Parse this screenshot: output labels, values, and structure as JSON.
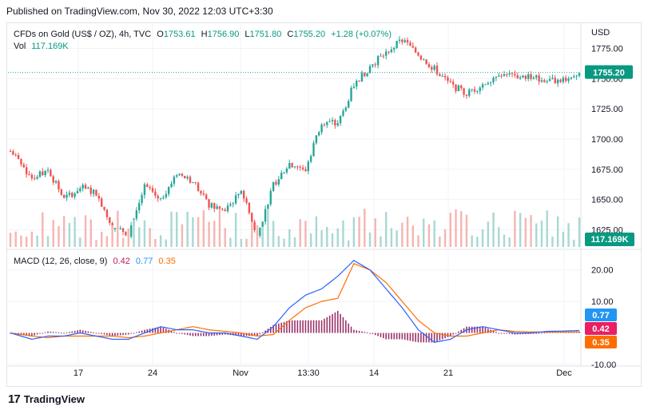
{
  "header": {
    "published": "Published on TradingView.com, Nov 30, 2022 12:03 UTC+3:30"
  },
  "footer": {
    "brand": "TradingView",
    "logo": "17"
  },
  "colors": {
    "up": "#26a69a",
    "down": "#ef5350",
    "vol_up": "#a8d8d2",
    "vol_down": "#f5b5b2",
    "macd_line": "#2962ff",
    "signal_line": "#ff6d00",
    "hist_pos": "#880e4f",
    "price_line": "#26a69a",
    "grid": "#f0f3fa",
    "axis_text": "#131722"
  },
  "legend": {
    "symbol": "CFDs on Gold (US$ / OZ), 4h, TVC",
    "o_label": "O",
    "o_value": "1753.61",
    "h_label": "H",
    "h_value": "1756.90",
    "l_label": "L",
    "l_value": "1751.80",
    "c_label": "C",
    "c_value": "1755.20",
    "change": "+1.28 (+0.07%)",
    "vol_label": "Vol",
    "vol_value": "117.169K"
  },
  "macd_legend": {
    "label": "MACD (12, 26, close, 9)",
    "hist": "0.42",
    "macd": "0.77",
    "signal": "0.35"
  },
  "price_axis": {
    "currency": "USD",
    "ticks": [
      "1775.00",
      "1750.00",
      "1725.00",
      "1700.00",
      "1675.00",
      "1650.00",
      "1625.00"
    ]
  },
  "price_badge": "1755.20",
  "volume_badge": "117.169K",
  "macd_axis": {
    "ticks": [
      "20.00",
      "10.00",
      "-10.00"
    ]
  },
  "macd_badges": {
    "macd": "0.77",
    "hist": "0.42",
    "signal": "0.35"
  },
  "time_axis": {
    "ticks": [
      "17",
      "24",
      "Nov",
      "13:30",
      "14",
      "21",
      "Dec"
    ]
  },
  "chart_data": {
    "type": "candlestick",
    "symbol": "CFDs on Gold (US$ / OZ)",
    "interval": "4h",
    "last": {
      "open": 1753.61,
      "high": 1756.9,
      "low": 1751.8,
      "close": 1755.2,
      "change": 1.28,
      "change_pct": 0.07
    },
    "price_axis_range": [
      1610,
      1790
    ],
    "close_path": {
      "x_index": [
        0,
        8,
        14,
        20,
        26,
        32,
        38,
        44,
        50,
        56,
        62,
        68,
        74,
        80,
        86,
        92,
        98,
        104,
        110,
        116,
        122,
        128,
        134,
        140,
        146,
        152,
        158,
        164,
        170,
        176,
        182,
        188,
        194,
        200,
        206,
        212
      ],
      "close": [
        1690,
        1668,
        1675,
        1650,
        1660,
        1655,
        1628,
        1622,
        1660,
        1650,
        1672,
        1665,
        1645,
        1640,
        1658,
        1620,
        1662,
        1680,
        1675,
        1715,
        1712,
        1745,
        1760,
        1772,
        1782,
        1770,
        1758,
        1745,
        1738,
        1745,
        1755,
        1752,
        1752,
        1748,
        1750,
        1755
      ]
    },
    "macd": {
      "axis_range": [
        -10,
        25
      ],
      "macd_values": [
        0,
        -2,
        -1,
        -1,
        0,
        -1,
        -2,
        -2,
        0,
        2,
        1,
        1,
        0,
        0,
        -1,
        -2,
        2,
        8,
        12,
        14,
        18,
        23,
        20,
        14,
        8,
        1,
        -3,
        -2,
        1,
        2,
        1,
        0,
        0,
        0.5,
        0.6,
        0.77
      ],
      "signal_values": [
        0,
        -1,
        -1.5,
        -1,
        -1,
        -1,
        -1,
        -1.5,
        -1,
        0,
        1,
        2,
        1,
        0.5,
        0,
        -1,
        -0.5,
        4,
        8,
        10,
        11,
        22,
        20,
        16,
        10,
        4,
        0,
        -1,
        -1,
        0,
        1,
        0.5,
        0.3,
        0.3,
        0.3,
        0.35
      ]
    }
  }
}
